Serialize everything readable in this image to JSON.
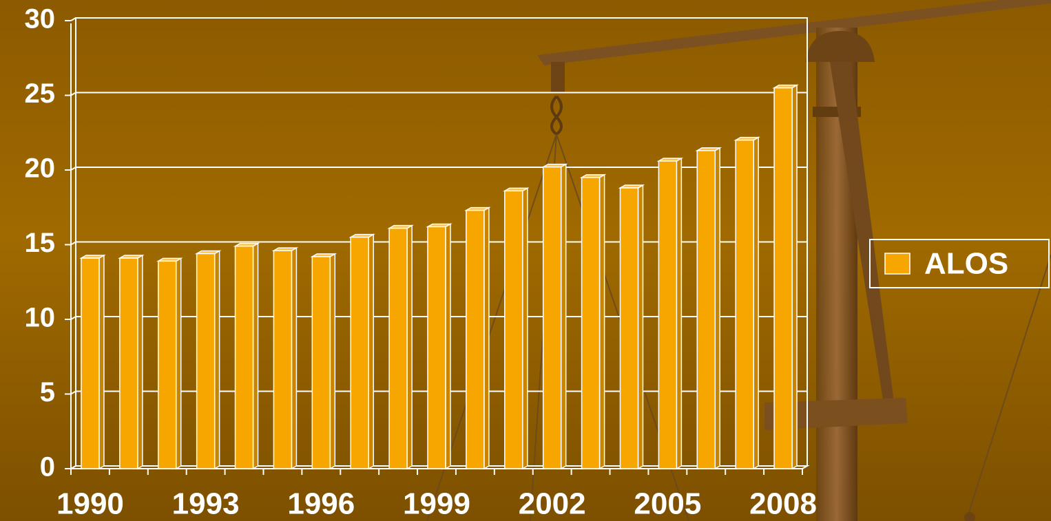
{
  "chart_data": {
    "type": "bar3d",
    "categories": [
      "1990",
      null,
      null,
      "1993",
      null,
      null,
      "1996",
      null,
      null,
      "1999",
      null,
      null,
      "2002",
      null,
      null,
      "2005",
      null,
      null,
      "2008"
    ],
    "series": [
      {
        "name": "ALOS",
        "color": "#f7a600",
        "values": [
          14.1,
          14.1,
          13.9,
          14.4,
          14.9,
          14.6,
          14.2,
          15.5,
          16.1,
          16.2,
          17.3,
          18.6,
          20.2,
          19.5,
          18.8,
          20.6,
          21.3,
          22.0,
          25.5
        ]
      }
    ],
    "ylim": [
      0,
      30
    ],
    "yticks": [
      0,
      5,
      10,
      15,
      20,
      25,
      30
    ],
    "grid": true,
    "legend": "right"
  }
}
